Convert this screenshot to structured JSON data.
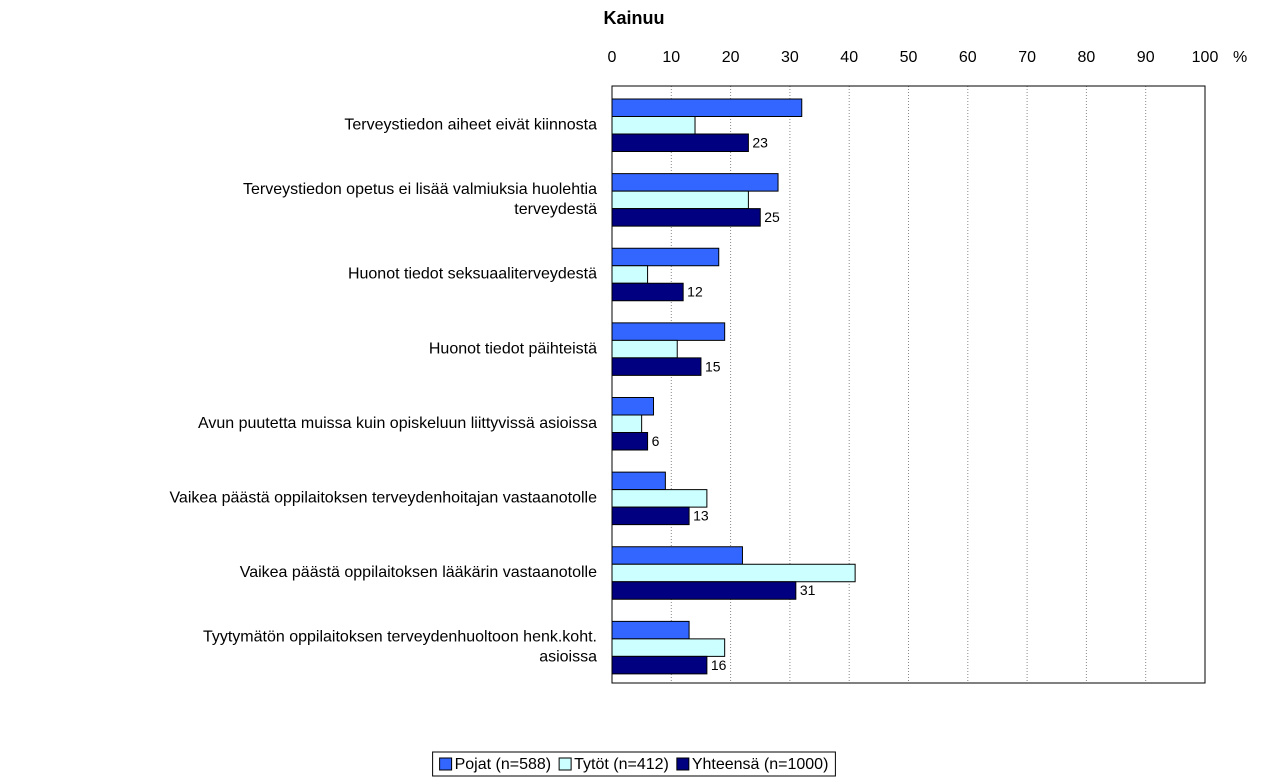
{
  "chart_data": {
    "type": "hbar",
    "title": "Kainuu",
    "x_unit": "%",
    "categories": [
      "Terveystiedon aiheet eivät kiinnosta",
      "Terveystiedon opetus ei lisää valmiuksia huolehtia\nterveydestä",
      "Huonot tiedot seksuaaliterveydestä",
      "Huonot tiedot päihteistä",
      "Avun puutetta muissa kuin opiskeluun liittyvissä asioissa",
      "Vaikea päästä oppilaitoksen terveydenhoitajan vastaanotolle",
      "Vaikea päästä oppilaitoksen lääkärin vastaanotolle",
      "Tyytymätön oppilaitoksen terveydenhuoltoon henk.koht.\nasioissa"
    ],
    "series": [
      {
        "name": "Pojat (n=588)",
        "color": "#3366ff",
        "values": [
          32,
          28,
          18,
          19,
          7,
          9,
          22,
          13
        ]
      },
      {
        "name": "Tytöt (n=412)",
        "color": "#ccffff",
        "values": [
          14,
          23,
          6,
          11,
          5,
          16,
          41,
          19
        ]
      },
      {
        "name": "Yhteensä (n=1000)",
        "color": "#000080",
        "values": [
          23,
          25,
          12,
          15,
          6,
          13,
          31,
          16
        ],
        "show_labels": true
      }
    ],
    "xlim": [
      0,
      100
    ],
    "xticks": [
      0,
      10,
      20,
      30,
      40,
      50,
      60,
      70,
      80,
      90,
      100
    ],
    "grid": true,
    "legend": "bottom"
  }
}
